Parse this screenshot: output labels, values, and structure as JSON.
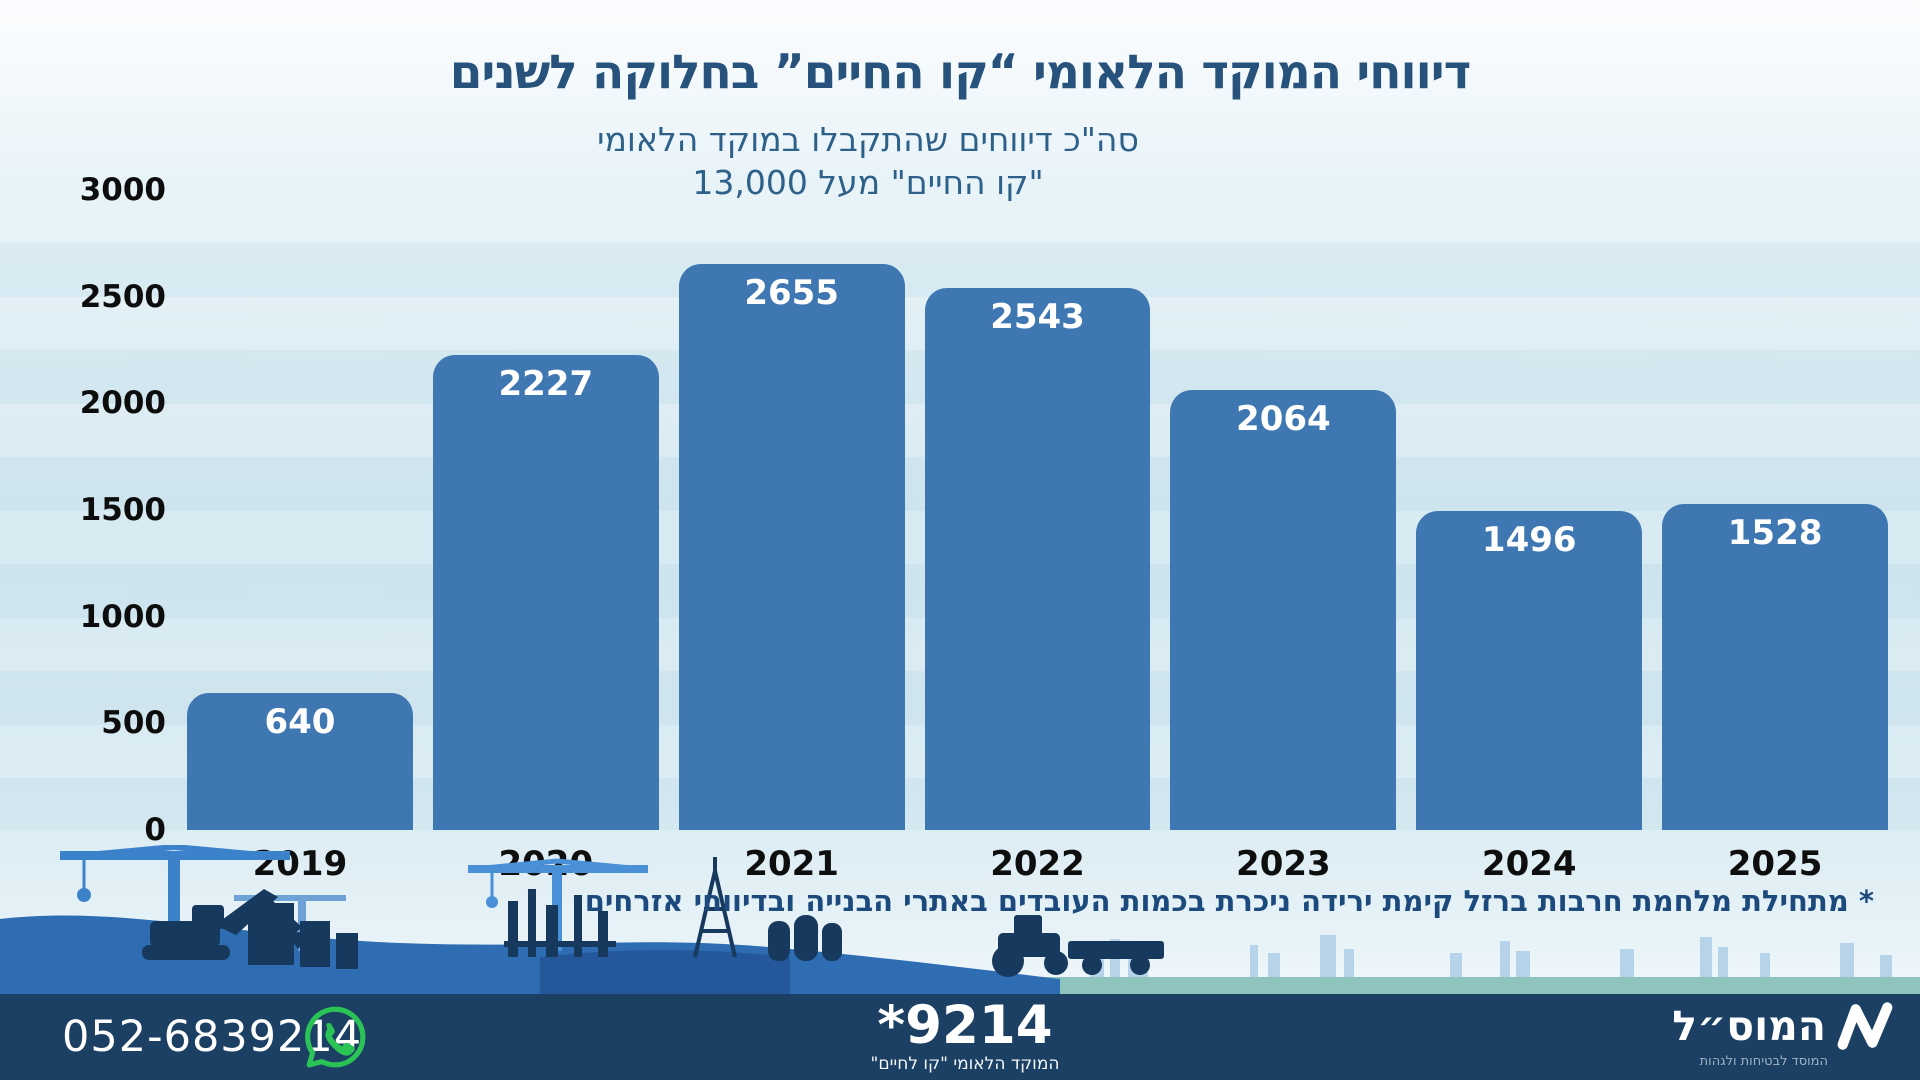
{
  "header": {
    "title": "דיווחי המוקד הלאומי “קו החיים” בחלוקה לשנים"
  },
  "subtitle": {
    "line1": "סה\"כ דיווחים שהתקבלו במוקד הלאומי",
    "line2": "\"קו החיים\" מעל 13,000"
  },
  "chart_data": {
    "type": "bar",
    "title": "דיווחי המוקד הלאומי “קו החיים” בחלוקה לשנים",
    "categories": [
      "2019",
      "2020",
      "2021",
      "2022",
      "2023",
      "2024",
      "2025"
    ],
    "values": [
      640,
      2227,
      2655,
      2543,
      2064,
      1496,
      1528
    ],
    "y_ticks": [
      0,
      500,
      1000,
      1500,
      2000,
      2500,
      3000
    ],
    "ylim": [
      0,
      3000
    ],
    "xlabel": "",
    "ylabel": "",
    "grid": false,
    "legend": false,
    "value_labels_inside_bars": true,
    "bar_color": "#3f77b2",
    "value_label_color": "#ffffff"
  },
  "footnote": "* מתחילת מלחמת חרבות ברזל קימת ירידה ניכרת בכמות העובדים באתרי הבנייה ובדיווחי אזרחים",
  "footer": {
    "phone": "052-6839214",
    "whatsapp_icon": "whatsapp-icon",
    "hotline_number": "*9214",
    "hotline_label": "המוקד הלאומי \"קו לחיים\"",
    "logo_icon": "zigzag-logo-icon",
    "logo_text": "המוס״ל",
    "logo_tagline": "המוסד לבטיחות ולגהות"
  },
  "colors": {
    "title_color": "#26527c",
    "subtitle_color": "#2e6189",
    "footnote_color": "#1d4a7c",
    "tick_color": "#0d0d0d",
    "bar_color": "#3f77b2",
    "teal": "#8ec4bd",
    "footer_bg": "#1c4064",
    "wa_green": "#2bc356",
    "silhouette_dark": "#18395e",
    "silhouette_mid": "#2f6db3",
    "silhouette_light": "#b7d3e9"
  }
}
